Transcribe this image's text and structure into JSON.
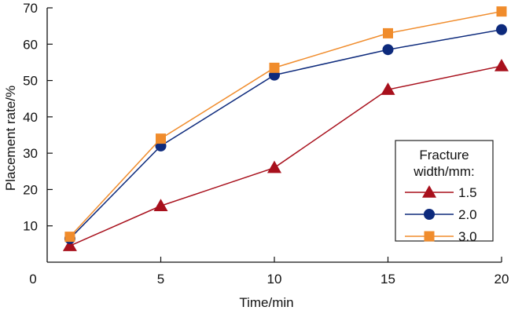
{
  "chart_data": {
    "type": "line",
    "xlabel": "Time/min",
    "ylabel": "Placement rate/%",
    "xlim": [
      0,
      20
    ],
    "ylim": [
      0,
      70
    ],
    "xticks": [
      0,
      5,
      10,
      15,
      20
    ],
    "yticks": [
      10,
      20,
      30,
      40,
      50,
      60,
      70
    ],
    "xtick_labels": [
      "0",
      "5",
      "10",
      "15",
      "20"
    ],
    "ytick_labels": [
      "10",
      "20",
      "30",
      "40",
      "50",
      "60",
      "70"
    ],
    "grid": false,
    "legend": {
      "title": [
        "Fracture",
        "width/mm:"
      ],
      "placement": "right"
    },
    "series": [
      {
        "name": "1.5",
        "color": "#a8101c",
        "marker": "triangle",
        "x": [
          1,
          5,
          10,
          15,
          20
        ],
        "y": [
          4.5,
          15.5,
          26,
          47.5,
          54
        ]
      },
      {
        "name": "2.0",
        "color": "#0d2a7c",
        "marker": "circle",
        "x": [
          1,
          5,
          10,
          15,
          20
        ],
        "y": [
          6.5,
          32,
          51.5,
          58.5,
          64
        ]
      },
      {
        "name": "3.0",
        "color": "#f08c2c",
        "marker": "square",
        "x": [
          1,
          5,
          10,
          15,
          20
        ],
        "y": [
          7,
          34,
          53.5,
          63,
          69
        ]
      }
    ]
  }
}
